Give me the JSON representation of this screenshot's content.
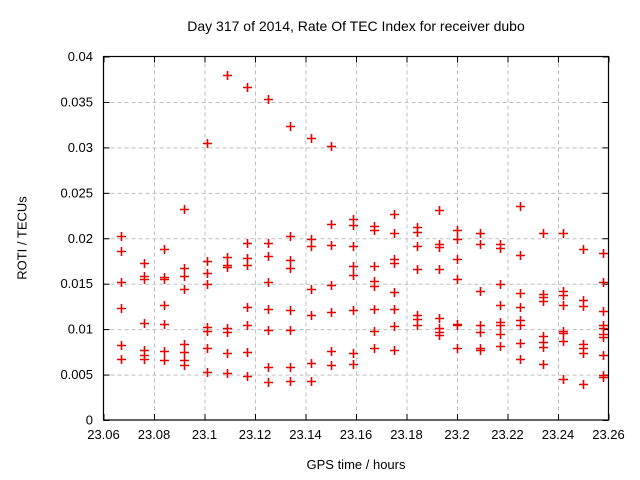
{
  "chart_data": {
    "type": "scatter",
    "title": "Day 317 of 2014, Rate Of TEC Index for receiver dubo",
    "xlabel": "GPS time / hours",
    "ylabel": "ROTI / TECUs",
    "xlim": [
      23.06,
      23.26
    ],
    "ylim": [
      0,
      0.04
    ],
    "x_tick_values": [
      23.06,
      23.08,
      23.1,
      23.12,
      23.14,
      23.16,
      23.18,
      23.2,
      23.22,
      23.24,
      23.26
    ],
    "x_tick_labels": [
      "23.06",
      "23.08",
      "23.1",
      "23.12",
      "23.14",
      "23.16",
      "23.18",
      "23.2",
      "23.22",
      "23.24",
      "23.26"
    ],
    "y_tick_values": [
      0,
      0.005,
      0.01,
      0.015,
      0.02,
      0.025,
      0.03,
      0.035,
      0.04
    ],
    "y_tick_labels": [
      "0",
      "0.005",
      "0.01",
      "0.015",
      "0.02",
      "0.025",
      "0.03",
      "0.035",
      "0.04"
    ],
    "grid": true,
    "legend": "none",
    "marker": {
      "shape": "plus",
      "color": "#e60000",
      "size": 9
    },
    "grid_color": "#bfbfbf",
    "frame_color": "#000000",
    "series": [
      {
        "name": "ROTI",
        "points": [
          [
            23.067,
            0.0202
          ],
          [
            23.067,
            0.0186
          ],
          [
            23.067,
            0.0152
          ],
          [
            23.067,
            0.0123
          ],
          [
            23.067,
            0.0083
          ],
          [
            23.067,
            0.0067
          ],
          [
            23.076,
            0.0173
          ],
          [
            23.076,
            0.0159
          ],
          [
            23.076,
            0.0155
          ],
          [
            23.076,
            0.0107
          ],
          [
            23.076,
            0.0077
          ],
          [
            23.076,
            0.0072
          ],
          [
            23.076,
            0.0067
          ],
          [
            23.084,
            0.0188
          ],
          [
            23.084,
            0.0157
          ],
          [
            23.084,
            0.0155
          ],
          [
            23.084,
            0.0127
          ],
          [
            23.084,
            0.0106
          ],
          [
            23.084,
            0.0076
          ],
          [
            23.084,
            0.0066
          ],
          [
            23.092,
            0.0232
          ],
          [
            23.092,
            0.0167
          ],
          [
            23.092,
            0.0158
          ],
          [
            23.092,
            0.0144
          ],
          [
            23.092,
            0.0084
          ],
          [
            23.092,
            0.0075
          ],
          [
            23.092,
            0.0066
          ],
          [
            23.092,
            0.0061
          ],
          [
            23.101,
            0.0305
          ],
          [
            23.101,
            0.0175
          ],
          [
            23.101,
            0.0162
          ],
          [
            23.101,
            0.015
          ],
          [
            23.101,
            0.0102
          ],
          [
            23.101,
            0.0098
          ],
          [
            23.101,
            0.0079
          ],
          [
            23.101,
            0.0053
          ],
          [
            23.109,
            0.038
          ],
          [
            23.109,
            0.0179
          ],
          [
            23.109,
            0.0171
          ],
          [
            23.109,
            0.0168
          ],
          [
            23.109,
            0.0101
          ],
          [
            23.109,
            0.0097
          ],
          [
            23.109,
            0.0074
          ],
          [
            23.109,
            0.0052
          ],
          [
            23.117,
            0.0366
          ],
          [
            23.117,
            0.0195
          ],
          [
            23.117,
            0.0178
          ],
          [
            23.117,
            0.0171
          ],
          [
            23.117,
            0.0124
          ],
          [
            23.117,
            0.0104
          ],
          [
            23.117,
            0.0075
          ],
          [
            23.117,
            0.0048
          ],
          [
            23.125,
            0.0353
          ],
          [
            23.125,
            0.0195
          ],
          [
            23.125,
            0.018
          ],
          [
            23.125,
            0.0152
          ],
          [
            23.125,
            0.0122
          ],
          [
            23.125,
            0.0099
          ],
          [
            23.125,
            0.0058
          ],
          [
            23.125,
            0.0042
          ],
          [
            23.134,
            0.0324
          ],
          [
            23.134,
            0.0203
          ],
          [
            23.134,
            0.0176
          ],
          [
            23.134,
            0.0167
          ],
          [
            23.134,
            0.0121
          ],
          [
            23.134,
            0.0099
          ],
          [
            23.134,
            0.0058
          ],
          [
            23.134,
            0.0043
          ],
          [
            23.142,
            0.031
          ],
          [
            23.142,
            0.0199
          ],
          [
            23.142,
            0.0192
          ],
          [
            23.142,
            0.0144
          ],
          [
            23.142,
            0.0116
          ],
          [
            23.142,
            0.0063
          ],
          [
            23.142,
            0.0043
          ],
          [
            23.15,
            0.0302
          ],
          [
            23.15,
            0.0216
          ],
          [
            23.15,
            0.0193
          ],
          [
            23.15,
            0.0149
          ],
          [
            23.15,
            0.0119
          ],
          [
            23.15,
            0.0076
          ],
          [
            23.15,
            0.006
          ],
          [
            23.159,
            0.0221
          ],
          [
            23.159,
            0.0215
          ],
          [
            23.159,
            0.0191
          ],
          [
            23.159,
            0.0169
          ],
          [
            23.159,
            0.016
          ],
          [
            23.159,
            0.0121
          ],
          [
            23.159,
            0.0074
          ],
          [
            23.159,
            0.0062
          ],
          [
            23.167,
            0.0213
          ],
          [
            23.167,
            0.0209
          ],
          [
            23.167,
            0.017
          ],
          [
            23.167,
            0.0153
          ],
          [
            23.167,
            0.0148
          ],
          [
            23.167,
            0.0122
          ],
          [
            23.167,
            0.0098
          ],
          [
            23.167,
            0.0079
          ],
          [
            23.175,
            0.0227
          ],
          [
            23.175,
            0.0206
          ],
          [
            23.175,
            0.0177
          ],
          [
            23.175,
            0.0173
          ],
          [
            23.175,
            0.0141
          ],
          [
            23.175,
            0.0122
          ],
          [
            23.175,
            0.0103
          ],
          [
            23.175,
            0.0077
          ],
          [
            23.184,
            0.0212
          ],
          [
            23.184,
            0.0207
          ],
          [
            23.184,
            0.0192
          ],
          [
            23.184,
            0.0166
          ],
          [
            23.184,
            0.0115
          ],
          [
            23.184,
            0.0111
          ],
          [
            23.184,
            0.0105
          ],
          [
            23.193,
            0.0231
          ],
          [
            23.193,
            0.0194
          ],
          [
            23.193,
            0.019
          ],
          [
            23.193,
            0.0166
          ],
          [
            23.193,
            0.0112
          ],
          [
            23.193,
            0.0101
          ],
          [
            23.193,
            0.0097
          ],
          [
            23.193,
            0.0093
          ],
          [
            23.2,
            0.0209
          ],
          [
            23.2,
            0.0199
          ],
          [
            23.2,
            0.0177
          ],
          [
            23.2,
            0.0155
          ],
          [
            23.2,
            0.0106
          ],
          [
            23.2,
            0.0104
          ],
          [
            23.2,
            0.0079
          ],
          [
            23.209,
            0.0206
          ],
          [
            23.209,
            0.0194
          ],
          [
            23.209,
            0.0142
          ],
          [
            23.209,
            0.0105
          ],
          [
            23.209,
            0.0097
          ],
          [
            23.209,
            0.0079
          ],
          [
            23.209,
            0.0077
          ],
          [
            23.217,
            0.0194
          ],
          [
            23.217,
            0.0189
          ],
          [
            23.217,
            0.015
          ],
          [
            23.217,
            0.0127
          ],
          [
            23.217,
            0.0108
          ],
          [
            23.217,
            0.0105
          ],
          [
            23.217,
            0.0095
          ],
          [
            23.217,
            0.0081
          ],
          [
            23.225,
            0.0235
          ],
          [
            23.225,
            0.0182
          ],
          [
            23.225,
            0.014
          ],
          [
            23.225,
            0.0124
          ],
          [
            23.225,
            0.011
          ],
          [
            23.225,
            0.0105
          ],
          [
            23.225,
            0.0085
          ],
          [
            23.225,
            0.0067
          ],
          [
            23.234,
            0.0206
          ],
          [
            23.234,
            0.0139
          ],
          [
            23.234,
            0.0135
          ],
          [
            23.234,
            0.0131
          ],
          [
            23.234,
            0.0092
          ],
          [
            23.234,
            0.0086
          ],
          [
            23.234,
            0.008
          ],
          [
            23.234,
            0.0062
          ],
          [
            23.242,
            0.0206
          ],
          [
            23.242,
            0.0142
          ],
          [
            23.242,
            0.0138
          ],
          [
            23.242,
            0.0126
          ],
          [
            23.242,
            0.0098
          ],
          [
            23.242,
            0.0096
          ],
          [
            23.242,
            0.0087
          ],
          [
            23.242,
            0.0045
          ],
          [
            23.25,
            0.0188
          ],
          [
            23.25,
            0.0132
          ],
          [
            23.25,
            0.0125
          ],
          [
            23.25,
            0.0084
          ],
          [
            23.25,
            0.0079
          ],
          [
            23.25,
            0.0074
          ],
          [
            23.25,
            0.004
          ],
          [
            23.258,
            0.0184
          ],
          [
            23.258,
            0.0152
          ],
          [
            23.258,
            0.012
          ],
          [
            23.258,
            0.0105
          ],
          [
            23.258,
            0.0101
          ],
          [
            23.258,
            0.0095
          ],
          [
            23.258,
            0.0091
          ],
          [
            23.258,
            0.0072
          ],
          [
            23.258,
            0.005
          ],
          [
            23.258,
            0.0047
          ]
        ]
      }
    ]
  }
}
